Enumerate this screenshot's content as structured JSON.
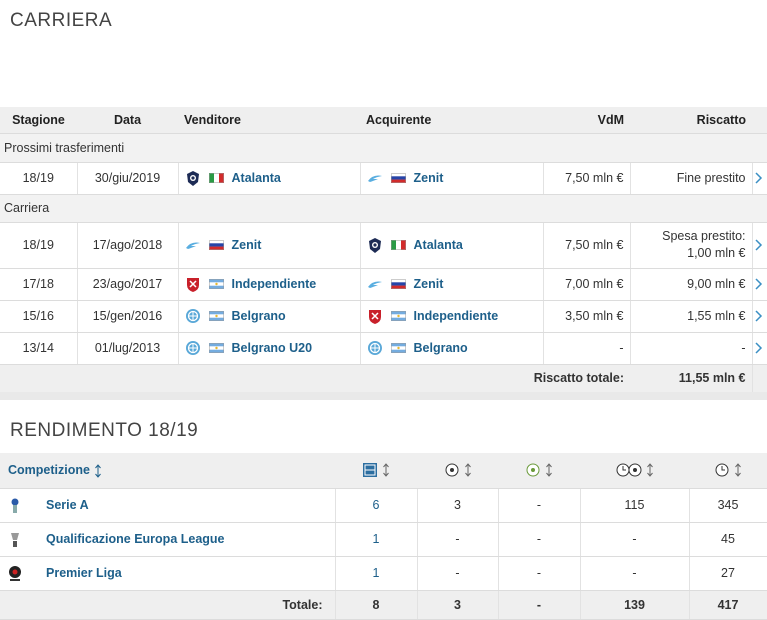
{
  "career": {
    "title": "CARRIERA",
    "columns": [
      "Stagione",
      "Data",
      "Venditore",
      "Acquirente",
      "VdM",
      "Riscatto"
    ],
    "sections": [
      {
        "label": "Prossimi trasferimenti",
        "rows": [
          {
            "season": "18/19",
            "date": "30/giu/2019",
            "seller": "Atalanta",
            "buyer": "Zenit",
            "value": "7,50 mln €",
            "fee": "Fine prestito"
          }
        ]
      },
      {
        "label": "Carriera",
        "rows": [
          {
            "season": "18/19",
            "date": "17/ago/2018",
            "seller": "Zenit",
            "buyer": "Atalanta",
            "value": "7,50 mln €",
            "fee_note": "Spesa prestito:",
            "fee": "1,00 mln €"
          },
          {
            "season": "17/18",
            "date": "23/ago/2017",
            "seller": "Independiente",
            "buyer": "Zenit",
            "value": "7,00 mln €",
            "fee": "9,00 mln €"
          },
          {
            "season": "15/16",
            "date": "15/gen/2016",
            "seller": "Belgrano",
            "buyer": "Independiente",
            "value": "3,50 mln €",
            "fee": "1,55 mln €"
          },
          {
            "season": "13/14",
            "date": "01/lug/2013",
            "seller": "Belgrano U20",
            "buyer": "Belgrano",
            "value": "-",
            "fee": "-"
          }
        ]
      }
    ],
    "total_label": "Riscatto totale:",
    "total": "11,55 mln €"
  },
  "performance": {
    "title": "RENDIMENTO 18/19",
    "header": "Competizione",
    "rows": [
      {
        "competition": "Serie A",
        "cells": [
          "6",
          "3",
          "-",
          "115",
          "345"
        ]
      },
      {
        "competition": "Qualificazione Europa League",
        "cells": [
          "1",
          "-",
          "-",
          "-",
          "45"
        ]
      },
      {
        "competition": "Premier Liga",
        "cells": [
          "1",
          "-",
          "-",
          "-",
          "27"
        ]
      }
    ],
    "total_label": "Totale:",
    "totals": [
      "8",
      "3",
      "-",
      "139",
      "417"
    ]
  }
}
